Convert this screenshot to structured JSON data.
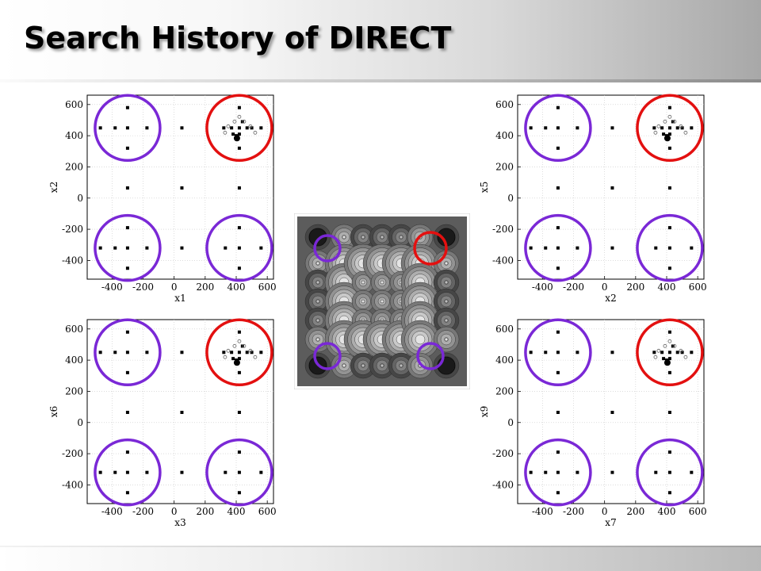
{
  "title": "Search History of DIRECT",
  "colors": {
    "promising_region": "#e31010",
    "other_region": "#7a28d6",
    "points": "#000000"
  },
  "chart_data": [
    {
      "type": "scatter",
      "panel": "top-left",
      "xlabel": "x1",
      "ylabel": "x2",
      "xlim": [
        -560,
        640
      ],
      "ylim": [
        -520,
        660
      ],
      "xticks": [
        -400,
        -200,
        0,
        200,
        400,
        600
      ],
      "yticks": [
        -400,
        -200,
        0,
        200,
        400,
        600
      ],
      "grid": true,
      "points": [
        [
          -300,
          580
        ],
        [
          -475,
          450
        ],
        [
          -380,
          450
        ],
        [
          -300,
          450
        ],
        [
          -175,
          450
        ],
        [
          -300,
          320
        ],
        [
          50,
          450
        ],
        [
          -300,
          65
        ],
        [
          50,
          65
        ],
        [
          420,
          65
        ],
        [
          -300,
          -190
        ],
        [
          -475,
          -320
        ],
        [
          -380,
          -320
        ],
        [
          -300,
          -320
        ],
        [
          -175,
          -320
        ],
        [
          -300,
          -450
        ],
        [
          50,
          -320
        ],
        [
          420,
          -190
        ],
        [
          330,
          -320
        ],
        [
          420,
          -320
        ],
        [
          560,
          -320
        ],
        [
          420,
          -450
        ],
        [
          420,
          580
        ],
        [
          420,
          450
        ],
        [
          420,
          320
        ],
        [
          320,
          450
        ],
        [
          560,
          450
        ],
        [
          400,
          400
        ],
        [
          420,
          410
        ],
        [
          380,
          410
        ],
        [
          440,
          490
        ],
        [
          470,
          450
        ],
        [
          370,
          450
        ],
        [
          500,
          450
        ]
      ],
      "circles": [
        {
          "x": -300,
          "y": 450,
          "color": "other_region"
        },
        {
          "x": 420,
          "y": 450,
          "color": "promising_region"
        },
        {
          "x": -300,
          "y": -320,
          "color": "other_region"
        },
        {
          "x": 420,
          "y": -320,
          "color": "other_region"
        }
      ]
    },
    {
      "type": "scatter",
      "panel": "top-right",
      "xlabel": "x2",
      "ylabel": "x5",
      "xlim": [
        -560,
        640
      ],
      "ylim": [
        -520,
        660
      ],
      "xticks": [
        -400,
        -200,
        0,
        200,
        400,
        600
      ],
      "yticks": [
        -400,
        -200,
        0,
        200,
        400,
        600
      ],
      "grid": true,
      "points": [
        [
          -300,
          580
        ],
        [
          -475,
          450
        ],
        [
          -380,
          450
        ],
        [
          -300,
          450
        ],
        [
          -175,
          450
        ],
        [
          -300,
          320
        ],
        [
          50,
          450
        ],
        [
          -300,
          65
        ],
        [
          50,
          65
        ],
        [
          420,
          65
        ],
        [
          -300,
          -190
        ],
        [
          -475,
          -320
        ],
        [
          -380,
          -320
        ],
        [
          -300,
          -320
        ],
        [
          -175,
          -320
        ],
        [
          -300,
          -450
        ],
        [
          50,
          -320
        ],
        [
          420,
          -190
        ],
        [
          330,
          -320
        ],
        [
          420,
          -320
        ],
        [
          560,
          -320
        ],
        [
          420,
          -450
        ],
        [
          420,
          580
        ],
        [
          420,
          450
        ],
        [
          420,
          320
        ],
        [
          320,
          450
        ],
        [
          560,
          450
        ],
        [
          400,
          400
        ],
        [
          420,
          410
        ],
        [
          380,
          410
        ],
        [
          440,
          490
        ],
        [
          470,
          450
        ],
        [
          370,
          450
        ],
        [
          500,
          450
        ]
      ],
      "circles": [
        {
          "x": -300,
          "y": 450,
          "color": "other_region"
        },
        {
          "x": 420,
          "y": 450,
          "color": "promising_region"
        },
        {
          "x": -300,
          "y": -320,
          "color": "other_region"
        },
        {
          "x": 420,
          "y": -320,
          "color": "other_region"
        }
      ]
    },
    {
      "type": "scatter",
      "panel": "bottom-left",
      "xlabel": "x3",
      "ylabel": "x6",
      "xlim": [
        -560,
        640
      ],
      "ylim": [
        -520,
        660
      ],
      "xticks": [
        -400,
        -200,
        0,
        200,
        400,
        600
      ],
      "yticks": [
        -400,
        -200,
        0,
        200,
        400,
        600
      ],
      "grid": true,
      "points": [
        [
          -300,
          580
        ],
        [
          -475,
          450
        ],
        [
          -380,
          450
        ],
        [
          -300,
          450
        ],
        [
          -175,
          450
        ],
        [
          -300,
          320
        ],
        [
          50,
          450
        ],
        [
          -300,
          65
        ],
        [
          50,
          65
        ],
        [
          420,
          65
        ],
        [
          -300,
          -190
        ],
        [
          -475,
          -320
        ],
        [
          -380,
          -320
        ],
        [
          -300,
          -320
        ],
        [
          -175,
          -320
        ],
        [
          -300,
          -450
        ],
        [
          50,
          -320
        ],
        [
          420,
          -190
        ],
        [
          330,
          -320
        ],
        [
          420,
          -320
        ],
        [
          560,
          -320
        ],
        [
          420,
          -450
        ],
        [
          420,
          580
        ],
        [
          420,
          450
        ],
        [
          420,
          320
        ],
        [
          320,
          450
        ],
        [
          560,
          450
        ],
        [
          400,
          400
        ],
        [
          420,
          410
        ],
        [
          380,
          410
        ],
        [
          440,
          490
        ],
        [
          470,
          450
        ],
        [
          370,
          450
        ],
        [
          500,
          450
        ]
      ],
      "circles": [
        {
          "x": -300,
          "y": 450,
          "color": "other_region"
        },
        {
          "x": 420,
          "y": 450,
          "color": "promising_region"
        },
        {
          "x": -300,
          "y": -320,
          "color": "other_region"
        },
        {
          "x": 420,
          "y": -320,
          "color": "other_region"
        }
      ]
    },
    {
      "type": "scatter",
      "panel": "bottom-right",
      "xlabel": "x7",
      "ylabel": "x9",
      "xlim": [
        -560,
        640
      ],
      "ylim": [
        -520,
        660
      ],
      "xticks": [
        -400,
        -200,
        0,
        200,
        400,
        600
      ],
      "yticks": [
        -400,
        -200,
        0,
        200,
        400,
        600
      ],
      "grid": true,
      "points": [
        [
          -300,
          580
        ],
        [
          -475,
          450
        ],
        [
          -380,
          450
        ],
        [
          -300,
          450
        ],
        [
          -175,
          450
        ],
        [
          -300,
          320
        ],
        [
          50,
          450
        ],
        [
          -300,
          65
        ],
        [
          50,
          65
        ],
        [
          420,
          65
        ],
        [
          -300,
          -190
        ],
        [
          -475,
          -320
        ],
        [
          -380,
          -320
        ],
        [
          -300,
          -320
        ],
        [
          -175,
          -320
        ],
        [
          -300,
          -450
        ],
        [
          50,
          -320
        ],
        [
          420,
          -190
        ],
        [
          330,
          -320
        ],
        [
          420,
          -320
        ],
        [
          560,
          -320
        ],
        [
          420,
          -450
        ],
        [
          420,
          580
        ],
        [
          420,
          450
        ],
        [
          420,
          320
        ],
        [
          320,
          450
        ],
        [
          560,
          450
        ],
        [
          400,
          400
        ],
        [
          420,
          410
        ],
        [
          380,
          410
        ],
        [
          440,
          490
        ],
        [
          470,
          450
        ],
        [
          370,
          450
        ],
        [
          500,
          450
        ]
      ],
      "circles": [
        {
          "x": -300,
          "y": 450,
          "color": "other_region"
        },
        {
          "x": 420,
          "y": 450,
          "color": "promising_region"
        },
        {
          "x": -300,
          "y": -320,
          "color": "other_region"
        },
        {
          "x": 420,
          "y": -320,
          "color": "other_region"
        }
      ]
    },
    {
      "type": "heatmap",
      "panel": "center",
      "colormap": "grayscale contour",
      "circles": [
        {
          "position": "top-left",
          "color": "other_region"
        },
        {
          "position": "top-right",
          "color": "promising_region"
        },
        {
          "position": "bottom-left",
          "color": "other_region"
        },
        {
          "position": "bottom-right",
          "color": "other_region"
        }
      ]
    }
  ]
}
